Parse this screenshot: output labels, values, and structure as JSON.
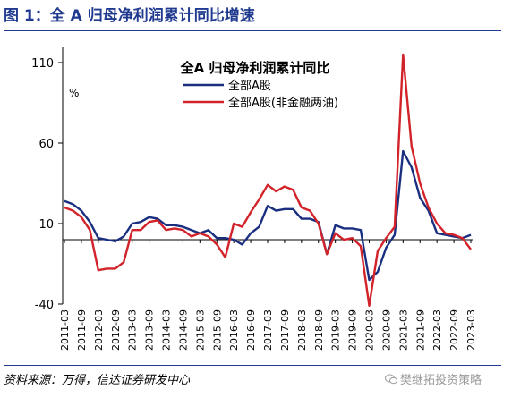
{
  "figure": {
    "title": "图 1：全 A 归母净利润累计同比增速",
    "source": "资料来源：万得，信达证券研发中心",
    "watermark": "樊继拓投资策略"
  },
  "colors": {
    "series_blue": "#1a2f80",
    "series_red": "#d2232a",
    "accent": "#1f3a8f"
  },
  "chart_data": {
    "type": "line",
    "title": "全A 归母净利润累计同比",
    "ylabel": "%",
    "ylim": [
      -40,
      120
    ],
    "yticks": [
      -40,
      10,
      60,
      110
    ],
    "xticks": [
      "2011-03",
      "2011-09",
      "2012-03",
      "2012-09",
      "2013-03",
      "2013-09",
      "2014-03",
      "2014-09",
      "2015-03",
      "2015-09",
      "2016-03",
      "2016-09",
      "2017-03",
      "2017-09",
      "2018-03",
      "2018-09",
      "2019-03",
      "2019-09",
      "2020-03",
      "2020-09",
      "2021-03",
      "2021-09",
      "2022-03",
      "2022-09",
      "2023-03"
    ],
    "x": [
      "2011-03",
      "2011-06",
      "2011-09",
      "2011-12",
      "2012-03",
      "2012-06",
      "2012-09",
      "2012-12",
      "2013-03",
      "2013-06",
      "2013-09",
      "2013-12",
      "2014-03",
      "2014-06",
      "2014-09",
      "2014-12",
      "2015-03",
      "2015-06",
      "2015-09",
      "2015-12",
      "2016-03",
      "2016-06",
      "2016-09",
      "2016-12",
      "2017-03",
      "2017-06",
      "2017-09",
      "2017-12",
      "2018-03",
      "2018-06",
      "2018-09",
      "2018-12",
      "2019-03",
      "2019-06",
      "2019-09",
      "2019-12",
      "2020-03",
      "2020-06",
      "2020-09",
      "2020-12",
      "2021-03",
      "2021-06",
      "2021-09",
      "2021-12",
      "2022-03",
      "2022-06",
      "2022-09",
      "2022-12",
      "2023-03"
    ],
    "legend_position": "top-center",
    "series": [
      {
        "name": "全部A股",
        "values": [
          24,
          22,
          18,
          11,
          1,
          0,
          -1,
          2,
          10,
          11,
          14,
          13,
          9,
          9,
          8,
          6,
          4,
          6,
          1,
          1,
          0,
          -3,
          4,
          8,
          21,
          18,
          19,
          19,
          13,
          13,
          11,
          -9,
          9,
          7,
          7,
          6,
          -25,
          -20,
          -5,
          3,
          55,
          45,
          26,
          18,
          4,
          3,
          2,
          1,
          3
        ]
      },
      {
        "name": "全部A股(非金融两油)",
        "values": [
          20,
          18,
          14,
          6,
          -19,
          -18,
          -18,
          -14,
          6,
          6,
          11,
          12,
          6,
          7,
          6,
          2,
          4,
          2,
          -3,
          -11,
          10,
          8,
          17,
          25,
          34,
          30,
          33,
          31,
          20,
          18,
          10,
          -9,
          4,
          0,
          1,
          -4,
          -41,
          -7,
          1,
          8,
          115,
          58,
          35,
          20,
          10,
          4,
          3,
          1,
          -6
        ]
      }
    ]
  }
}
